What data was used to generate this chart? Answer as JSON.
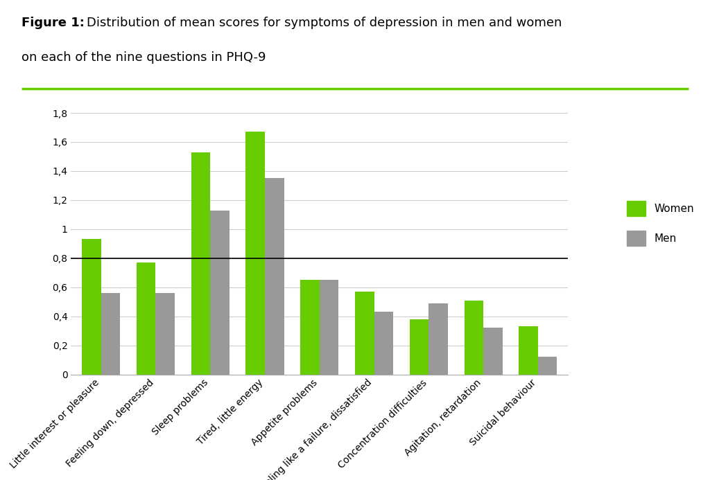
{
  "categories": [
    "Little interest or pleasure",
    "Feeling down, depressed",
    "Sleep problems",
    "Tired, little energy",
    "Appetite problems",
    "Feeling like a failure, dissatisfied",
    "Concentration difficulties",
    "Agitation, retardation",
    "Suicidal behaviour"
  ],
  "women_values": [
    0.93,
    0.77,
    1.53,
    1.67,
    0.65,
    0.57,
    0.38,
    0.51,
    0.33
  ],
  "men_values": [
    0.56,
    0.56,
    1.13,
    1.35,
    0.65,
    0.43,
    0.49,
    0.32,
    0.12
  ],
  "women_color": "#66cc00",
  "men_color": "#999999",
  "ylim": [
    0,
    1.9
  ],
  "yticks": [
    0,
    0.2,
    0.4,
    0.6,
    0.8,
    1.0,
    1.2,
    1.4,
    1.6,
    1.8
  ],
  "ytick_labels": [
    "0",
    "0,2",
    "0,4",
    "0,6",
    "0,8",
    "1",
    "1,2",
    "1,4",
    "1,6",
    "1,8"
  ],
  "hline_y": 0.8,
  "hline_color": "#000000",
  "grid_color": "#cccccc",
  "background_color": "#ffffff",
  "bar_width": 0.35,
  "legend_women": "Women",
  "legend_men": "Men",
  "title_fontsize": 13,
  "tick_label_fontsize": 10,
  "legend_fontsize": 11,
  "top_line_color": "#66cc00"
}
